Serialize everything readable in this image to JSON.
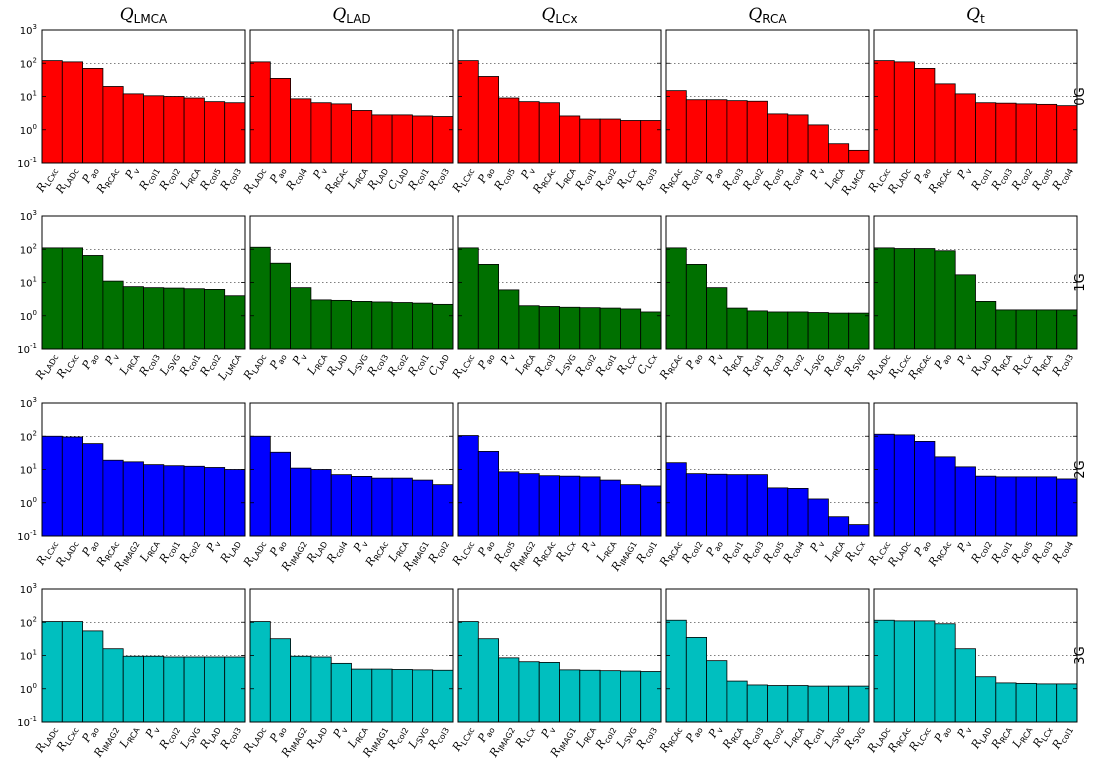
{
  "chart_data": {
    "type": "bar",
    "y_scale": "log",
    "ylim": [
      0.1,
      1000
    ],
    "y_ticks": [
      {
        "base": "10",
        "exp": "-1"
      },
      {
        "base": "10",
        "exp": "0"
      },
      {
        "base": "10",
        "exp": "1"
      },
      {
        "base": "10",
        "exp": "2"
      },
      {
        "base": "10",
        "exp": "3"
      }
    ],
    "grid": "horizontal dotted",
    "columns": [
      {
        "symbol": "Q",
        "sub": "LMCA"
      },
      {
        "symbol": "Q",
        "sub": "LAD"
      },
      {
        "symbol": "Q",
        "sub": "LCx"
      },
      {
        "symbol": "Q",
        "sub": "RCA"
      },
      {
        "symbol": "Q",
        "sub": "t"
      }
    ],
    "rows": [
      {
        "label": "0G",
        "color": "#ff0000"
      },
      {
        "label": "1G",
        "color": "#007000"
      },
      {
        "label": "2G",
        "color": "#0000ff"
      },
      {
        "label": "3G",
        "color": "#00bfbf"
      }
    ],
    "panels": [
      [
        {
          "bars": [
            [
              "R",
              "LCxc",
              120
            ],
            [
              "R",
              "LADc",
              110
            ],
            [
              "P",
              "ao",
              70
            ],
            [
              "R",
              "RCAc",
              20
            ],
            [
              "P",
              "v",
              12
            ],
            [
              "R",
              "col1",
              10.5
            ],
            [
              "R",
              "col2",
              10
            ],
            [
              "L",
              "RCA",
              9
            ],
            [
              "R",
              "col5",
              7
            ],
            [
              "R",
              "col3",
              6.5
            ]
          ]
        },
        {
          "bars": [
            [
              "R",
              "LADc",
              110
            ],
            [
              "P",
              "ao",
              35
            ],
            [
              "R",
              "col4",
              8.5
            ],
            [
              "P",
              "v",
              6.5
            ],
            [
              "R",
              "RCAc",
              6
            ],
            [
              "L",
              "RCA",
              3.8
            ],
            [
              "R",
              "LAD",
              2.8
            ],
            [
              "C",
              "LAD",
              2.8
            ],
            [
              "R",
              "col1",
              2.6
            ],
            [
              "R",
              "col3",
              2.5
            ]
          ]
        },
        {
          "bars": [
            [
              "R",
              "LCxc",
              120
            ],
            [
              "P",
              "ao",
              40
            ],
            [
              "R",
              "col5",
              9
            ],
            [
              "P",
              "v",
              7
            ],
            [
              "R",
              "RCAc",
              6.5
            ],
            [
              "L",
              "RCA",
              2.6
            ],
            [
              "R",
              "col1",
              2.1
            ],
            [
              "R",
              "col2",
              2.1
            ],
            [
              "R",
              "LCx",
              1.9
            ],
            [
              "R",
              "col3",
              1.9
            ]
          ]
        },
        {
          "bars": [
            [
              "R",
              "RCAc",
              15
            ],
            [
              "R",
              "col1",
              8
            ],
            [
              "P",
              "ao",
              8
            ],
            [
              "R",
              "col3",
              7.5
            ],
            [
              "R",
              "col2",
              7.2
            ],
            [
              "R",
              "col5",
              3
            ],
            [
              "R",
              "col4",
              2.8
            ],
            [
              "P",
              "v",
              1.4
            ],
            [
              "L",
              "RCA",
              0.38
            ],
            [
              "R",
              "LMCA",
              0.24
            ]
          ]
        },
        {
          "bars": [
            [
              "R",
              "LCxc",
              120
            ],
            [
              "R",
              "LADc",
              110
            ],
            [
              "P",
              "ao",
              70
            ],
            [
              "R",
              "RCAc",
              24
            ],
            [
              "P",
              "v",
              12
            ],
            [
              "R",
              "col1",
              6.5
            ],
            [
              "R",
              "col3",
              6.3
            ],
            [
              "R",
              "col2",
              6
            ],
            [
              "R",
              "col5",
              5.8
            ],
            [
              "R",
              "col4",
              5.3
            ]
          ]
        }
      ],
      [
        {
          "bars": [
            [
              "R",
              "LADc",
              110
            ],
            [
              "R",
              "LCxc",
              110
            ],
            [
              "P",
              "ao",
              65
            ],
            [
              "P",
              "v",
              11
            ],
            [
              "L",
              "RCA",
              7.5
            ],
            [
              "R",
              "col3",
              7
            ],
            [
              "L",
              "SVG",
              6.8
            ],
            [
              "R",
              "col1",
              6.5
            ],
            [
              "R",
              "col2",
              6.2
            ],
            [
              "L",
              "LMCA",
              4
            ]
          ]
        },
        {
          "bars": [
            [
              "R",
              "LADc",
              115
            ],
            [
              "P",
              "ao",
              38
            ],
            [
              "P",
              "v",
              7
            ],
            [
              "L",
              "RCA",
              3
            ],
            [
              "R",
              "LAD",
              2.9
            ],
            [
              "L",
              "SVG",
              2.7
            ],
            [
              "R",
              "col3",
              2.6
            ],
            [
              "R",
              "col2",
              2.5
            ],
            [
              "R",
              "col1",
              2.4
            ],
            [
              "C",
              "LAD",
              2.2
            ]
          ]
        },
        {
          "bars": [
            [
              "R",
              "LCxc",
              110
            ],
            [
              "P",
              "ao",
              35
            ],
            [
              "P",
              "v",
              6
            ],
            [
              "L",
              "RCA",
              2
            ],
            [
              "R",
              "col3",
              1.9
            ],
            [
              "L",
              "SVG",
              1.8
            ],
            [
              "R",
              "col2",
              1.75
            ],
            [
              "R",
              "col1",
              1.7
            ],
            [
              "R",
              "LCx",
              1.6
            ],
            [
              "C",
              "LCx",
              1.3
            ]
          ]
        },
        {
          "bars": [
            [
              "R",
              "RCAc",
              110
            ],
            [
              "P",
              "ao",
              35
            ],
            [
              "P",
              "v",
              7
            ],
            [
              "R",
              "RCA",
              1.7
            ],
            [
              "R",
              "col1",
              1.4
            ],
            [
              "R",
              "col3",
              1.3
            ],
            [
              "R",
              "col2",
              1.3
            ],
            [
              "L",
              "SVG",
              1.25
            ],
            [
              "R",
              "col5",
              1.2
            ],
            [
              "R",
              "SVG",
              1.2
            ]
          ]
        },
        {
          "bars": [
            [
              "R",
              "LADc",
              110
            ],
            [
              "R",
              "LCxc",
              105
            ],
            [
              "R",
              "RCAc",
              105
            ],
            [
              "P",
              "ao",
              90
            ],
            [
              "P",
              "v",
              17
            ],
            [
              "R",
              "LAD",
              2.7
            ],
            [
              "R",
              "RCA",
              1.5
            ],
            [
              "R",
              "LCx",
              1.5
            ],
            [
              "R",
              "RCA",
              1.5
            ],
            [
              "R",
              "col3",
              1.5
            ]
          ]
        }
      ],
      [
        {
          "bars": [
            [
              "R",
              "LCxc",
              100
            ],
            [
              "R",
              "LADc",
              95
            ],
            [
              "P",
              "ao",
              60
            ],
            [
              "R",
              "RCAc",
              19
            ],
            [
              "R",
              "IMAG2",
              17
            ],
            [
              "L",
              "RCA",
              14
            ],
            [
              "R",
              "col1",
              13
            ],
            [
              "R",
              "col2",
              12.5
            ],
            [
              "P",
              "v",
              11.5
            ],
            [
              "R",
              "LAD",
              10
            ]
          ]
        },
        {
          "bars": [
            [
              "R",
              "LADc",
              100
            ],
            [
              "P",
              "ao",
              33
            ],
            [
              "R",
              "IMAG2",
              11
            ],
            [
              "R",
              "LAD",
              10
            ],
            [
              "R",
              "col4",
              7
            ],
            [
              "P",
              "v",
              6.2
            ],
            [
              "R",
              "RCAc",
              5.5
            ],
            [
              "L",
              "RCA",
              5.5
            ],
            [
              "R",
              "IMAG1",
              4.8
            ],
            [
              "R",
              "col2",
              3.5
            ]
          ]
        },
        {
          "bars": [
            [
              "R",
              "LCxc",
              105
            ],
            [
              "P",
              "ao",
              35
            ],
            [
              "R",
              "col5",
              8.5
            ],
            [
              "R",
              "IMAG2",
              7.5
            ],
            [
              "R",
              "RCAc",
              6.5
            ],
            [
              "R",
              "LCx",
              6.3
            ],
            [
              "P",
              "v",
              6
            ],
            [
              "L",
              "RCA",
              4.8
            ],
            [
              "R",
              "IMAG1",
              3.5
            ],
            [
              "R",
              "col1",
              3.2
            ]
          ]
        },
        {
          "bars": [
            [
              "R",
              "RCAc",
              16
            ],
            [
              "R",
              "col2",
              7.5
            ],
            [
              "P",
              "ao",
              7.2
            ],
            [
              "R",
              "col1",
              7
            ],
            [
              "R",
              "col3",
              7
            ],
            [
              "R",
              "col5",
              2.8
            ],
            [
              "R",
              "col4",
              2.7
            ],
            [
              "P",
              "v",
              1.3
            ],
            [
              "L",
              "RCA",
              0.38
            ],
            [
              "R",
              "LCx",
              0.22
            ]
          ]
        },
        {
          "bars": [
            [
              "R",
              "LCxc",
              115
            ],
            [
              "R",
              "LADc",
              110
            ],
            [
              "P",
              "ao",
              70
            ],
            [
              "R",
              "RCAc",
              24
            ],
            [
              "P",
              "v",
              12
            ],
            [
              "R",
              "col2",
              6.3
            ],
            [
              "R",
              "col1",
              6
            ],
            [
              "R",
              "col5",
              6
            ],
            [
              "R",
              "col3",
              6
            ],
            [
              "R",
              "col4",
              5.2
            ]
          ]
        }
      ],
      [
        {
          "bars": [
            [
              "R",
              "LADc",
              105
            ],
            [
              "R",
              "LCxc",
              105
            ],
            [
              "P",
              "ao",
              55
            ],
            [
              "R",
              "IMAG2",
              16
            ],
            [
              "L",
              "RCA",
              9.5
            ],
            [
              "P",
              "v",
              9.5
            ],
            [
              "R",
              "col2",
              9
            ],
            [
              "L",
              "SVG",
              9
            ],
            [
              "R",
              "LAD",
              9
            ],
            [
              "R",
              "col3",
              9
            ]
          ]
        },
        {
          "bars": [
            [
              "R",
              "LADc",
              105
            ],
            [
              "P",
              "ao",
              32
            ],
            [
              "R",
              "IMAG2",
              9.5
            ],
            [
              "R",
              "LAD",
              9
            ],
            [
              "P",
              "v",
              5.8
            ],
            [
              "L",
              "RCA",
              3.9
            ],
            [
              "R",
              "IMAG1",
              3.9
            ],
            [
              "R",
              "col2",
              3.8
            ],
            [
              "L",
              "SVG",
              3.7
            ],
            [
              "R",
              "col3",
              3.6
            ]
          ]
        },
        {
          "bars": [
            [
              "R",
              "LCxc",
              105
            ],
            [
              "P",
              "ao",
              32
            ],
            [
              "R",
              "IMAG2",
              8.5
            ],
            [
              "R",
              "LCx",
              6.5
            ],
            [
              "P",
              "v",
              6.2
            ],
            [
              "R",
              "IMAG1",
              3.7
            ],
            [
              "L",
              "RCA",
              3.6
            ],
            [
              "R",
              "col2",
              3.5
            ],
            [
              "L",
              "SVG",
              3.4
            ],
            [
              "R",
              "col3",
              3.3
            ]
          ]
        },
        {
          "bars": [
            [
              "R",
              "RCAc",
              115
            ],
            [
              "P",
              "ao",
              35
            ],
            [
              "P",
              "v",
              7
            ],
            [
              "R",
              "RCA",
              1.7
            ],
            [
              "R",
              "col3",
              1.3
            ],
            [
              "R",
              "col2",
              1.25
            ],
            [
              "L",
              "RCA",
              1.25
            ],
            [
              "R",
              "col1",
              1.2
            ],
            [
              "L",
              "SVG",
              1.2
            ],
            [
              "R",
              "SVG",
              1.2
            ]
          ]
        },
        {
          "bars": [
            [
              "R",
              "LADc",
              115
            ],
            [
              "R",
              "RCAc",
              110
            ],
            [
              "R",
              "LCxc",
              110
            ],
            [
              "P",
              "ao",
              90
            ],
            [
              "P",
              "v",
              16
            ],
            [
              "R",
              "LAD",
              2.3
            ],
            [
              "R",
              "RCA",
              1.5
            ],
            [
              "L",
              "RCA",
              1.45
            ],
            [
              "R",
              "LCx",
              1.4
            ],
            [
              "R",
              "col1",
              1.4
            ]
          ]
        }
      ]
    ]
  }
}
